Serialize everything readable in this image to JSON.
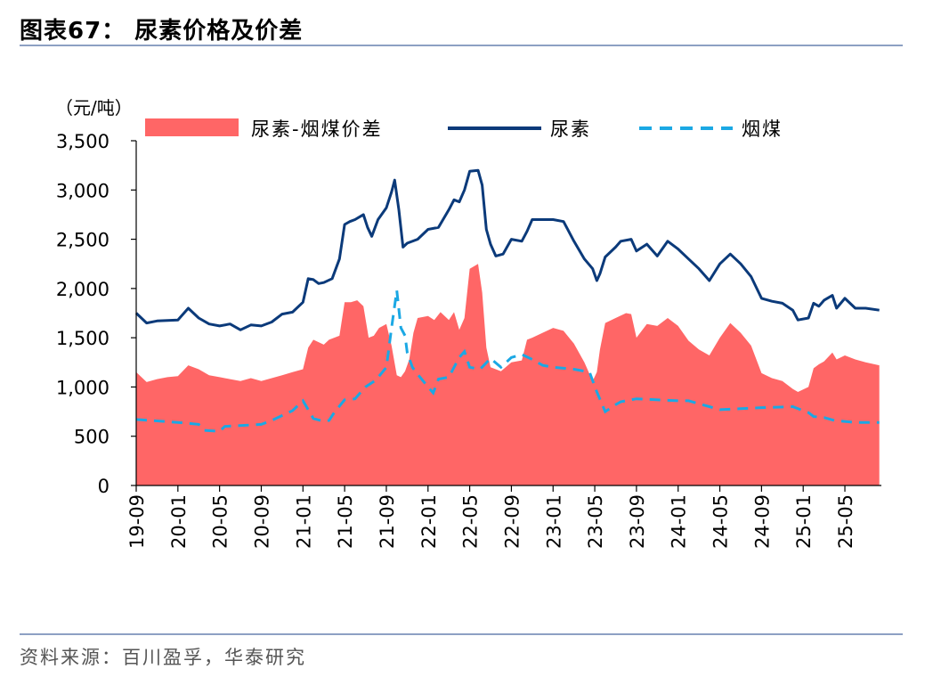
{
  "header": {
    "title": "图表67：  尿素价格及价差"
  },
  "footer": {
    "source": "资料来源：百川盈孚，华泰研究"
  },
  "colors": {
    "spread": "#ff6666",
    "urea": "#0b3a7a",
    "coal": "#1ba8e4",
    "rule": "#8da0c3",
    "axis": "#000000"
  },
  "chart_data": {
    "type": "area",
    "unit_label": "（元/吨）",
    "ylim": [
      0,
      3500
    ],
    "yticks": [
      "3,500",
      "3,000",
      "2,500",
      "2,000",
      "1,500",
      "1,000",
      "500",
      "0"
    ],
    "ytick_values": [
      3500,
      3000,
      2500,
      2000,
      1500,
      1000,
      500,
      0
    ],
    "x_range": [
      0,
      71.5
    ],
    "x_ticks": [
      {
        "label": "19-09",
        "i": 0
      },
      {
        "label": "20-01",
        "i": 4
      },
      {
        "label": "20-05",
        "i": 8
      },
      {
        "label": "20-09",
        "i": 12
      },
      {
        "label": "21-01",
        "i": 16
      },
      {
        "label": "21-05",
        "i": 20
      },
      {
        "label": "21-09",
        "i": 24
      },
      {
        "label": "22-01",
        "i": 28
      },
      {
        "label": "22-05",
        "i": 32
      },
      {
        "label": "22-09",
        "i": 36
      },
      {
        "label": "23-01",
        "i": 40
      },
      {
        "label": "23-05",
        "i": 44
      },
      {
        "label": "23-09",
        "i": 48
      },
      {
        "label": "24-01",
        "i": 52
      },
      {
        "label": "24-05",
        "i": 56
      },
      {
        "label": "24-09",
        "i": 60
      },
      {
        "label": "25-01",
        "i": 64
      },
      {
        "label": "25-05",
        "i": 68
      }
    ],
    "legend": [
      "尿素-烟煤价差",
      "尿素",
      "烟煤"
    ],
    "series": [
      {
        "name": "尿素",
        "style": "line",
        "points": [
          [
            0,
            1750
          ],
          [
            1,
            1650
          ],
          [
            2,
            1670
          ],
          [
            4,
            1680
          ],
          [
            5,
            1800
          ],
          [
            6,
            1700
          ],
          [
            7,
            1640
          ],
          [
            8,
            1620
          ],
          [
            9,
            1640
          ],
          [
            10,
            1580
          ],
          [
            11,
            1630
          ],
          [
            12,
            1620
          ],
          [
            13,
            1660
          ],
          [
            14,
            1740
          ],
          [
            15,
            1760
          ],
          [
            16,
            1860
          ],
          [
            16.5,
            2100
          ],
          [
            17,
            2090
          ],
          [
            17.5,
            2050
          ],
          [
            18,
            2060
          ],
          [
            18.8,
            2100
          ],
          [
            19.5,
            2300
          ],
          [
            20,
            2650
          ],
          [
            20.5,
            2680
          ],
          [
            21,
            2700
          ],
          [
            21.8,
            2750
          ],
          [
            22.2,
            2620
          ],
          [
            22.6,
            2530
          ],
          [
            23.2,
            2700
          ],
          [
            24,
            2820
          ],
          [
            24.5,
            2980
          ],
          [
            24.8,
            3100
          ],
          [
            25.2,
            2800
          ],
          [
            25.6,
            2420
          ],
          [
            26,
            2460
          ],
          [
            27,
            2500
          ],
          [
            28,
            2600
          ],
          [
            29,
            2620
          ],
          [
            30,
            2800
          ],
          [
            30.5,
            2900
          ],
          [
            31,
            2880
          ],
          [
            31.5,
            3000
          ],
          [
            32,
            3190
          ],
          [
            32.8,
            3200
          ],
          [
            33.2,
            3050
          ],
          [
            33.6,
            2600
          ],
          [
            34,
            2450
          ],
          [
            34.5,
            2330
          ],
          [
            35.2,
            2350
          ],
          [
            36,
            2500
          ],
          [
            37,
            2480
          ],
          [
            37.5,
            2580
          ],
          [
            38,
            2700
          ],
          [
            39,
            2700
          ],
          [
            40,
            2700
          ],
          [
            41,
            2680
          ],
          [
            42,
            2480
          ],
          [
            43,
            2300
          ],
          [
            43.8,
            2200
          ],
          [
            44.2,
            2080
          ],
          [
            44.5,
            2150
          ],
          [
            45,
            2320
          ],
          [
            46,
            2420
          ],
          [
            46.5,
            2480
          ],
          [
            47.5,
            2500
          ],
          [
            48,
            2380
          ],
          [
            49,
            2450
          ],
          [
            50,
            2330
          ],
          [
            51,
            2480
          ],
          [
            52,
            2400
          ],
          [
            53,
            2300
          ],
          [
            54,
            2200
          ],
          [
            55,
            2080
          ],
          [
            56,
            2250
          ],
          [
            57,
            2350
          ],
          [
            58,
            2250
          ],
          [
            59,
            2120
          ],
          [
            60,
            1900
          ],
          [
            61,
            1870
          ],
          [
            62,
            1850
          ],
          [
            63,
            1780
          ],
          [
            63.5,
            1680
          ],
          [
            64.5,
            1700
          ],
          [
            65,
            1850
          ],
          [
            65.5,
            1820
          ],
          [
            66,
            1880
          ],
          [
            66.8,
            1930
          ],
          [
            67.2,
            1800
          ],
          [
            68,
            1900
          ],
          [
            69,
            1800
          ],
          [
            70,
            1800
          ],
          [
            71.3,
            1780
          ]
        ]
      },
      {
        "name": "烟煤",
        "style": "dashed",
        "points": [
          [
            0,
            670
          ],
          [
            4,
            640
          ],
          [
            6,
            620
          ],
          [
            6.5,
            560
          ],
          [
            8,
            550
          ],
          [
            8.5,
            600
          ],
          [
            12,
            620
          ],
          [
            13,
            660
          ],
          [
            14,
            710
          ],
          [
            15,
            760
          ],
          [
            16,
            860
          ],
          [
            17,
            680
          ],
          [
            18,
            650
          ],
          [
            18.5,
            660
          ],
          [
            19,
            740
          ],
          [
            20,
            870
          ],
          [
            21,
            880
          ],
          [
            22,
            1000
          ],
          [
            23,
            1070
          ],
          [
            24,
            1200
          ],
          [
            24.5,
            1600
          ],
          [
            25,
            1980
          ],
          [
            25.4,
            1600
          ],
          [
            25.8,
            1520
          ],
          [
            26,
            1350
          ],
          [
            26.5,
            1200
          ],
          [
            27,
            1130
          ],
          [
            28,
            1000
          ],
          [
            28.5,
            940
          ],
          [
            29,
            1080
          ],
          [
            30,
            1100
          ],
          [
            30.5,
            1200
          ],
          [
            31,
            1300
          ],
          [
            31.5,
            1360
          ],
          [
            32,
            1200
          ],
          [
            33,
            1180
          ],
          [
            34,
            1290
          ],
          [
            35,
            1200
          ],
          [
            36,
            1300
          ],
          [
            37,
            1330
          ],
          [
            38,
            1280
          ],
          [
            39,
            1220
          ],
          [
            40,
            1200
          ],
          [
            42,
            1180
          ],
          [
            43.5,
            1150
          ],
          [
            44.2,
            950
          ],
          [
            45,
            750
          ],
          [
            46,
            820
          ],
          [
            46.5,
            850
          ],
          [
            48,
            880
          ],
          [
            52,
            860
          ],
          [
            53,
            860
          ],
          [
            55,
            800
          ],
          [
            56,
            770
          ],
          [
            58,
            780
          ],
          [
            60,
            790
          ],
          [
            63,
            800
          ],
          [
            64,
            760
          ],
          [
            64.5,
            740
          ],
          [
            65,
            700
          ],
          [
            66,
            690
          ],
          [
            67,
            660
          ],
          [
            68,
            650
          ],
          [
            69,
            640
          ],
          [
            71.3,
            640
          ]
        ]
      },
      {
        "name": "尿素-烟煤价差",
        "style": "area",
        "points": [
          [
            0,
            1150
          ],
          [
            1,
            1050
          ],
          [
            2,
            1080
          ],
          [
            3,
            1100
          ],
          [
            4,
            1110
          ],
          [
            5,
            1220
          ],
          [
            6,
            1180
          ],
          [
            7,
            1120
          ],
          [
            8,
            1100
          ],
          [
            9,
            1080
          ],
          [
            10,
            1060
          ],
          [
            11,
            1090
          ],
          [
            12,
            1060
          ],
          [
            13,
            1090
          ],
          [
            14,
            1120
          ],
          [
            15,
            1150
          ],
          [
            16,
            1180
          ],
          [
            16.5,
            1400
          ],
          [
            17,
            1480
          ],
          [
            18,
            1430
          ],
          [
            18.5,
            1480
          ],
          [
            19.5,
            1520
          ],
          [
            20,
            1860
          ],
          [
            20.6,
            1860
          ],
          [
            21.2,
            1880
          ],
          [
            21.8,
            1820
          ],
          [
            22.3,
            1500
          ],
          [
            22.8,
            1520
          ],
          [
            23.3,
            1600
          ],
          [
            24,
            1640
          ],
          [
            24.5,
            1420
          ],
          [
            25,
            1120
          ],
          [
            25.4,
            1100
          ],
          [
            25.8,
            1160
          ],
          [
            26.2,
            1280
          ],
          [
            26.6,
            1550
          ],
          [
            27,
            1700
          ],
          [
            28,
            1720
          ],
          [
            28.6,
            1680
          ],
          [
            29.2,
            1760
          ],
          [
            30,
            1680
          ],
          [
            30.5,
            1760
          ],
          [
            31,
            1580
          ],
          [
            31.5,
            1700
          ],
          [
            32,
            2200
          ],
          [
            32.8,
            2250
          ],
          [
            33.2,
            1960
          ],
          [
            33.6,
            1400
          ],
          [
            34,
            1200
          ],
          [
            35,
            1160
          ],
          [
            36,
            1250
          ],
          [
            37,
            1270
          ],
          [
            37.5,
            1480
          ],
          [
            38,
            1500
          ],
          [
            39,
            1550
          ],
          [
            40,
            1600
          ],
          [
            41,
            1570
          ],
          [
            42,
            1440
          ],
          [
            43,
            1250
          ],
          [
            43.8,
            1060
          ],
          [
            44.2,
            1150
          ],
          [
            44.5,
            1380
          ],
          [
            45,
            1650
          ],
          [
            46,
            1700
          ],
          [
            47,
            1750
          ],
          [
            47.5,
            1740
          ],
          [
            48,
            1500
          ],
          [
            49,
            1640
          ],
          [
            50,
            1620
          ],
          [
            51,
            1700
          ],
          [
            52,
            1620
          ],
          [
            53,
            1470
          ],
          [
            54,
            1380
          ],
          [
            55,
            1320
          ],
          [
            56,
            1500
          ],
          [
            57,
            1650
          ],
          [
            58,
            1550
          ],
          [
            59,
            1420
          ],
          [
            60,
            1140
          ],
          [
            61,
            1090
          ],
          [
            62,
            1060
          ],
          [
            63,
            980
          ],
          [
            63.5,
            950
          ],
          [
            64.5,
            1000
          ],
          [
            65,
            1190
          ],
          [
            65.5,
            1230
          ],
          [
            66,
            1260
          ],
          [
            66.8,
            1350
          ],
          [
            67.2,
            1280
          ],
          [
            68,
            1320
          ],
          [
            69,
            1280
          ],
          [
            70,
            1250
          ],
          [
            71.3,
            1220
          ]
        ]
      }
    ]
  }
}
